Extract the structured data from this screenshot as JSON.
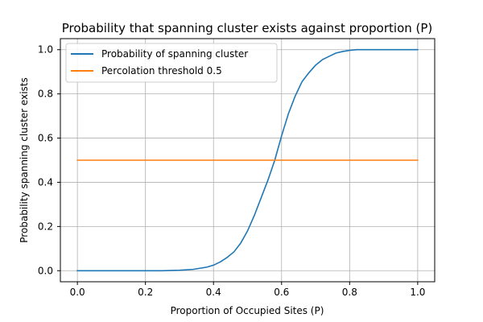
{
  "chart_data": {
    "type": "line",
    "title": "Probability that spanning cluster exists against proportion (P)",
    "xlabel": "Proportion of Occupied Sites (P)",
    "ylabel": "Probability spanning cluster exists",
    "xlim": [
      -0.05,
      1.05
    ],
    "ylim": [
      -0.05,
      1.05
    ],
    "xticks": [
      0.0,
      0.2,
      0.4,
      0.6,
      0.8,
      1.0
    ],
    "yticks": [
      0.0,
      0.2,
      0.4,
      0.6,
      0.8,
      1.0
    ],
    "xtick_labels": [
      "0.0",
      "0.2",
      "0.4",
      "0.6",
      "0.8",
      "1.0"
    ],
    "ytick_labels": [
      "0.0",
      "0.2",
      "0.4",
      "0.6",
      "0.8",
      "1.0"
    ],
    "grid": true,
    "legend_position": "top-left",
    "series": [
      {
        "name": "Probability of spanning cluster",
        "color": "#1f77b4",
        "x": [
          0.0,
          0.05,
          0.1,
          0.15,
          0.2,
          0.25,
          0.3,
          0.32,
          0.34,
          0.36,
          0.38,
          0.4,
          0.42,
          0.44,
          0.46,
          0.48,
          0.5,
          0.52,
          0.54,
          0.56,
          0.58,
          0.6,
          0.62,
          0.64,
          0.66,
          0.68,
          0.7,
          0.72,
          0.74,
          0.76,
          0.78,
          0.8,
          0.82,
          0.85,
          0.9,
          0.95,
          1.0
        ],
        "y": [
          0.0,
          0.0,
          0.0,
          0.0,
          0.0,
          0.0,
          0.002,
          0.004,
          0.006,
          0.011,
          0.016,
          0.025,
          0.04,
          0.06,
          0.085,
          0.125,
          0.18,
          0.25,
          0.33,
          0.41,
          0.5,
          0.61,
          0.71,
          0.79,
          0.855,
          0.895,
          0.93,
          0.955,
          0.97,
          0.985,
          0.992,
          0.997,
          1.0,
          1.0,
          1.0,
          1.0,
          1.0
        ]
      },
      {
        "name": "Percolation threshold 0.5",
        "color": "#ff7f0e",
        "x": [
          0.0,
          1.0
        ],
        "y": [
          0.5,
          0.5
        ]
      }
    ]
  }
}
